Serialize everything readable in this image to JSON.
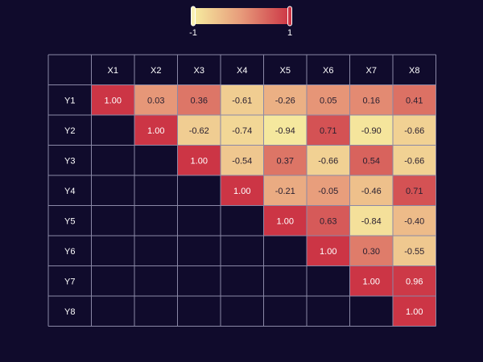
{
  "chart_data": {
    "type": "heatmap",
    "title": "",
    "x_labels": [
      "X1",
      "X2",
      "X3",
      "X4",
      "X5",
      "X6",
      "X7",
      "X8"
    ],
    "y_labels": [
      "Y1",
      "Y2",
      "Y3",
      "Y4",
      "Y5",
      "Y6",
      "Y7",
      "Y8"
    ],
    "values": [
      [
        1.0,
        0.03,
        0.36,
        -0.61,
        -0.26,
        0.05,
        0.16,
        0.41
      ],
      [
        null,
        1.0,
        -0.62,
        -0.74,
        -0.94,
        0.71,
        -0.9,
        -0.66
      ],
      [
        null,
        null,
        1.0,
        -0.54,
        0.37,
        -0.66,
        0.54,
        -0.66
      ],
      [
        null,
        null,
        null,
        1.0,
        -0.21,
        -0.05,
        -0.46,
        0.71
      ],
      [
        null,
        null,
        null,
        null,
        1.0,
        0.63,
        -0.84,
        -0.4
      ],
      [
        null,
        null,
        null,
        null,
        null,
        1.0,
        0.3,
        -0.55
      ],
      [
        null,
        null,
        null,
        null,
        null,
        null,
        1.0,
        0.96
      ],
      [
        null,
        null,
        null,
        null,
        null,
        null,
        null,
        1.0
      ]
    ],
    "value_format": "2 decimals",
    "colorbar": {
      "min": -1,
      "max": 1,
      "min_label": "-1",
      "max_label": "1",
      "placement": "top-center",
      "orientation": "horizontal"
    },
    "colors": {
      "low": "#f6eda0",
      "mid": "#e79a7a",
      "high": "#cc3545",
      "background": "#100b2c",
      "grid": "#8a88a6"
    }
  }
}
